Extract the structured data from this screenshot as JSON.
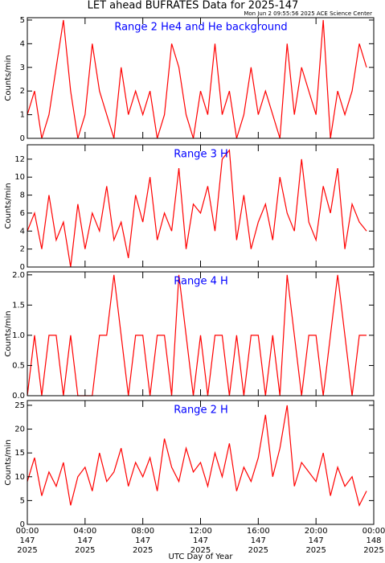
{
  "header": {
    "title": "LET ahead BUFRATES Data for 2025-147",
    "timestamp": "Mon Jun  2 09:55:56 2025 ACE Science Center"
  },
  "chart_data": [
    {
      "type": "line",
      "title": "Range 2 He4 and He background",
      "ylabel": "Counts/min",
      "x": [
        0,
        0.5,
        1,
        1.5,
        2,
        2.5,
        3,
        3.5,
        4,
        4.5,
        5,
        5.5,
        6,
        6.5,
        7,
        7.5,
        8,
        8.5,
        9,
        9.5,
        10,
        10.5,
        11,
        11.5,
        12,
        12.5,
        13,
        13.5,
        14,
        14.5,
        15,
        15.5,
        16,
        16.5,
        17,
        17.5,
        18,
        18.5,
        19,
        19.5,
        20,
        20.5,
        21,
        21.5,
        22,
        22.5,
        23,
        23.5
      ],
      "xlim": [
        0,
        24
      ],
      "ylim": [
        0,
        5.1
      ],
      "yticks": [
        0,
        1,
        2,
        3,
        4,
        5
      ],
      "series": [
        {
          "color": "#ff0000",
          "values": [
            1,
            2,
            0,
            1,
            3,
            5,
            2,
            0,
            1,
            4,
            2,
            1,
            0,
            3,
            1,
            2,
            1,
            2,
            0,
            1,
            4,
            3,
            1,
            0,
            2,
            1,
            4,
            1,
            2,
            0,
            1,
            3,
            1,
            2,
            1,
            0,
            4,
            1,
            3,
            2,
            1,
            5,
            0,
            2,
            1,
            2,
            4,
            3
          ]
        }
      ]
    },
    {
      "type": "line",
      "title": "Range 3 H",
      "ylabel": "Counts/min",
      "x": [
        0,
        0.5,
        1,
        1.5,
        2,
        2.5,
        3,
        3.5,
        4,
        4.5,
        5,
        5.5,
        6,
        6.5,
        7,
        7.5,
        8,
        8.5,
        9,
        9.5,
        10,
        10.5,
        11,
        11.5,
        12,
        12.5,
        13,
        13.5,
        14,
        14.5,
        15,
        15.5,
        16,
        16.5,
        17,
        17.5,
        18,
        18.5,
        19,
        19.5,
        20,
        20.5,
        21,
        21.5,
        22,
        22.5,
        23,
        23.5
      ],
      "xlim": [
        0,
        24
      ],
      "ylim": [
        0,
        13.6
      ],
      "yticks": [
        0,
        2,
        4,
        6,
        8,
        10,
        12
      ],
      "series": [
        {
          "color": "#ff0000",
          "values": [
            4,
            6,
            2,
            8,
            3,
            5,
            0,
            7,
            2,
            6,
            4,
            9,
            3,
            5,
            1,
            8,
            5,
            10,
            3,
            6,
            4,
            11,
            2,
            7,
            6,
            9,
            4,
            12,
            13,
            3,
            8,
            2,
            5,
            7,
            3,
            10,
            6,
            4,
            12,
            5,
            3,
            9,
            6,
            11,
            2,
            7,
            5,
            4
          ]
        }
      ]
    },
    {
      "type": "line",
      "title": "Range 4 H",
      "ylabel": "Counts/min",
      "x": [
        0,
        0.5,
        1,
        1.5,
        2,
        2.5,
        3,
        3.5,
        4,
        4.5,
        5,
        5.5,
        6,
        6.5,
        7,
        7.5,
        8,
        8.5,
        9,
        9.5,
        10,
        10.5,
        11,
        11.5,
        12,
        12.5,
        13,
        13.5,
        14,
        14.5,
        15,
        15.5,
        16,
        16.5,
        17,
        17.5,
        18,
        18.5,
        19,
        19.5,
        20,
        20.5,
        21,
        21.5,
        22,
        22.5,
        23,
        23.5
      ],
      "xlim": [
        0,
        24
      ],
      "ylim": [
        0,
        2.05
      ],
      "yticks": [
        {
          "value": 0,
          "label": "0.0"
        },
        {
          "value": 0.5,
          "label": "0.5"
        },
        {
          "value": 1,
          "label": "1.0"
        },
        {
          "value": 1.5,
          "label": "1.5"
        },
        {
          "value": 2,
          "label": "2.0"
        }
      ],
      "series": [
        {
          "color": "#ff0000",
          "values": [
            0,
            1,
            0,
            1,
            1,
            0,
            1,
            0,
            0,
            0,
            1,
            1,
            2,
            1,
            0,
            1,
            1,
            0,
            1,
            1,
            0,
            2,
            1,
            0,
            1,
            0,
            1,
            1,
            0,
            1,
            0,
            1,
            1,
            0,
            1,
            0,
            2,
            1,
            0,
            1,
            1,
            0,
            1,
            2,
            1,
            0,
            1,
            1
          ]
        }
      ]
    },
    {
      "type": "line",
      "title": "Range 2 H",
      "ylabel": "Counts/min",
      "xlabel": "UTC Day of Year",
      "x": [
        0,
        0.5,
        1,
        1.5,
        2,
        2.5,
        3,
        3.5,
        4,
        4.5,
        5,
        5.5,
        6,
        6.5,
        7,
        7.5,
        8,
        8.5,
        9,
        9.5,
        10,
        10.5,
        11,
        11.5,
        12,
        12.5,
        13,
        13.5,
        14,
        14.5,
        15,
        15.5,
        16,
        16.5,
        17,
        17.5,
        18,
        18.5,
        19,
        19.5,
        20,
        20.5,
        21,
        21.5,
        22,
        22.5,
        23,
        23.5
      ],
      "xlim": [
        0,
        24
      ],
      "ylim": [
        0,
        26
      ],
      "yticks": [
        0,
        5,
        10,
        15,
        20,
        25
      ],
      "xticks": [
        {
          "value": 0,
          "label": "00:00",
          "day": "147",
          "year": "2025"
        },
        {
          "value": 4,
          "label": "04:00",
          "day": "147",
          "year": "2025"
        },
        {
          "value": 8,
          "label": "08:00",
          "day": "147",
          "year": "2025"
        },
        {
          "value": 12,
          "label": "12:00",
          "day": "147",
          "year": "2025"
        },
        {
          "value": 16,
          "label": "16:00",
          "day": "147",
          "year": "2025"
        },
        {
          "value": 20,
          "label": "20:00",
          "day": "147",
          "year": "2025"
        },
        {
          "value": 24,
          "label": "00:00",
          "day": "148",
          "year": "2025"
        }
      ],
      "series": [
        {
          "color": "#ff0000",
          "values": [
            9,
            14,
            6,
            11,
            8,
            13,
            4,
            10,
            12,
            7,
            15,
            9,
            11,
            16,
            8,
            13,
            10,
            14,
            7,
            18,
            12,
            9,
            16,
            11,
            13,
            8,
            15,
            10,
            17,
            7,
            12,
            9,
            14,
            23,
            10,
            16,
            25,
            8,
            13,
            11,
            9,
            15,
            6,
            12,
            8,
            10,
            4,
            7
          ]
        }
      ]
    }
  ]
}
